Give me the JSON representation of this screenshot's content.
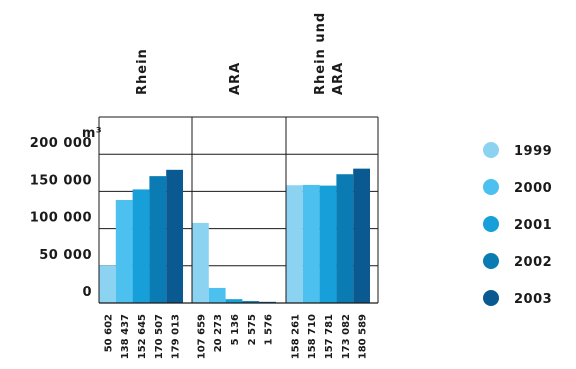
{
  "chart_data": {
    "type": "bar",
    "unit": "m³",
    "groups": [
      {
        "label_lines": [
          "Rhein"
        ],
        "values": [
          50602,
          138437,
          152645,
          170507,
          179013
        ],
        "data_labels": [
          "50 602",
          "138 437",
          "152 645",
          "170 507",
          "179 013"
        ]
      },
      {
        "label_lines": [
          "ARA"
        ],
        "values": [
          107659,
          20273,
          5136,
          2575,
          1576
        ],
        "data_labels": [
          "107 659",
          "20 273",
          "5 136",
          "2 575",
          "1 576"
        ]
      },
      {
        "label_lines": [
          "Rhein und",
          "ARA"
        ],
        "values": [
          158261,
          158710,
          157781,
          173082,
          180589
        ],
        "data_labels": [
          "158 261",
          "158 710",
          "157 781",
          "173 082",
          "180 589"
        ]
      }
    ],
    "series": [
      {
        "name": "1999",
        "color": "#8cd3f2"
      },
      {
        "name": "2000",
        "color": "#4cc0ee"
      },
      {
        "name": "2001",
        "color": "#169fd8"
      },
      {
        "name": "2002",
        "color": "#0b7cb3"
      },
      {
        "name": "2003",
        "color": "#0a5a91"
      }
    ],
    "y_ticks": [
      {
        "value": 0,
        "label": "0"
      },
      {
        "value": 50000,
        "label": "50 000"
      },
      {
        "value": 100000,
        "label": "100 000"
      },
      {
        "value": 150000,
        "label": "150 000"
      },
      {
        "value": 200000,
        "label": "200 000"
      }
    ],
    "ylim": [
      0,
      250000
    ],
    "grid": true,
    "legend_position": "right"
  }
}
